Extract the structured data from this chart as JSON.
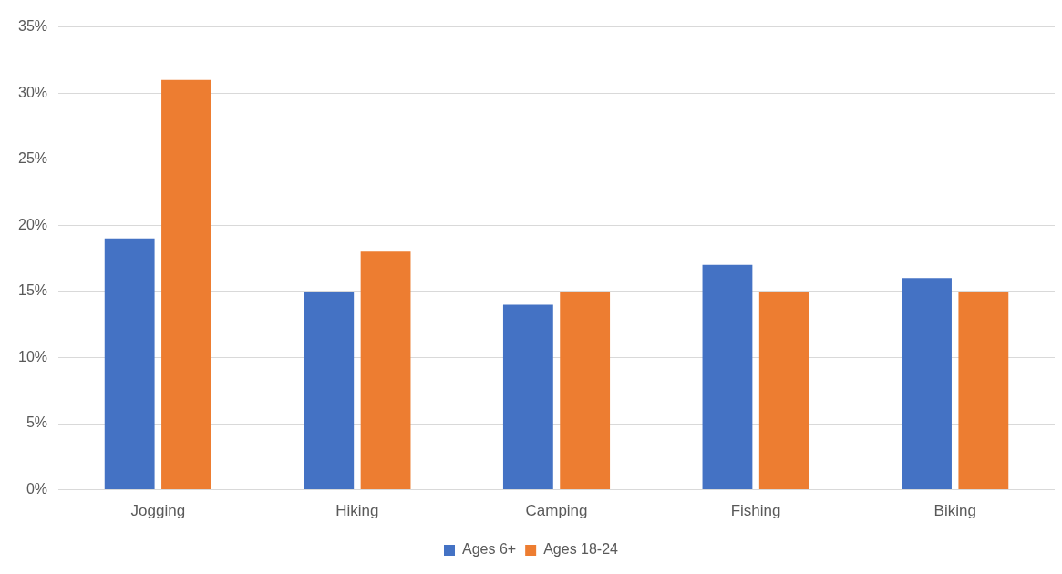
{
  "chart_data": {
    "type": "bar",
    "categories": [
      "Jogging",
      "Hiking",
      "Camping",
      "Fishing",
      "Biking"
    ],
    "series": [
      {
        "name": "Ages 6+",
        "color": "#4472c4",
        "values": [
          19,
          15,
          14,
          17,
          16
        ]
      },
      {
        "name": "Ages 18-24",
        "color": "#ed7d31",
        "values": [
          31,
          18,
          15,
          15,
          15
        ]
      }
    ],
    "ylim": [
      0,
      35
    ],
    "yticks": [
      {
        "value": 0,
        "label": "0%"
      },
      {
        "value": 5,
        "label": "5%"
      },
      {
        "value": 10,
        "label": "10%"
      },
      {
        "value": 15,
        "label": "15%"
      },
      {
        "value": 20,
        "label": "20%"
      },
      {
        "value": 25,
        "label": "25%"
      },
      {
        "value": 30,
        "label": "30%"
      },
      {
        "value": 35,
        "label": "35%"
      }
    ],
    "grid": "y",
    "legend": "bottom"
  }
}
